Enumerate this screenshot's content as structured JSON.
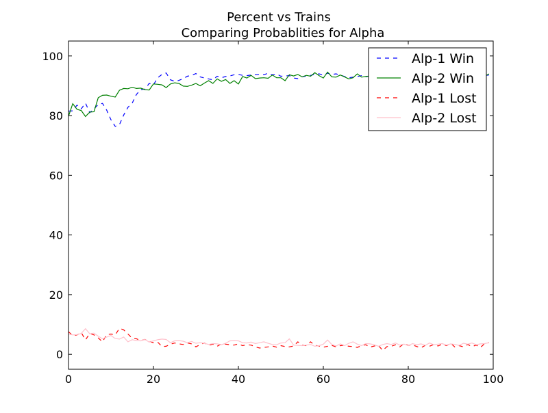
{
  "chart_data": {
    "type": "line",
    "title": "Percent vs Trains",
    "subtitle": "Comparing Probablities for Alpha",
    "xlabel": "",
    "ylabel": "",
    "xlim": [
      0,
      100
    ],
    "ylim": [
      -5,
      105
    ],
    "xticks": [
      0,
      20,
      40,
      60,
      80,
      100
    ],
    "yticks": [
      0,
      20,
      40,
      60,
      80,
      100
    ],
    "grid": false,
    "legend_position": "top-right",
    "x": [
      0,
      1,
      2,
      3,
      4,
      5,
      6,
      7,
      8,
      9,
      10,
      11,
      12,
      13,
      14,
      15,
      16,
      17,
      18,
      19,
      20,
      21,
      22,
      23,
      24,
      25,
      26,
      27,
      28,
      29,
      30,
      31,
      32,
      33,
      34,
      35,
      36,
      37,
      38,
      39,
      40,
      41,
      42,
      43,
      44,
      45,
      46,
      47,
      48,
      49,
      50,
      51,
      52,
      53,
      54,
      55,
      56,
      57,
      58,
      59,
      60,
      61,
      62,
      63,
      64,
      65,
      66,
      67,
      68,
      69,
      70,
      71,
      72,
      73,
      74,
      75,
      76,
      77,
      78,
      79,
      80,
      81,
      82,
      83,
      84,
      85,
      86,
      87,
      88,
      89,
      90,
      91,
      92,
      93,
      94,
      95,
      96,
      97,
      98,
      99
    ],
    "series": [
      {
        "name": "Alp-1 Win",
        "color": "#0000ff",
        "dash": "dashed",
        "values": [
          81.5,
          81.6,
          83.5,
          82.3,
          84.2,
          81.0,
          82.3,
          83.7,
          84.1,
          81.8,
          78.6,
          76.4,
          77.0,
          80.2,
          82.8,
          84.2,
          87.1,
          88.7,
          88.9,
          90.8,
          90.3,
          92.7,
          93.8,
          94.3,
          92.0,
          91.5,
          91.8,
          92.4,
          93.2,
          93.5,
          94.1,
          93.0,
          92.6,
          92.3,
          92.0,
          93.2,
          92.7,
          93.1,
          93.3,
          93.7,
          93.8,
          93.5,
          93.4,
          93.6,
          93.7,
          93.8,
          93.7,
          94.2,
          93.7,
          94.0,
          93.2,
          93.3,
          93.4,
          92.6,
          92.4,
          93.0,
          93.3,
          93.5,
          93.8,
          94.0,
          93.6,
          94.2,
          93.8,
          94.0,
          93.6,
          93.1,
          92.7,
          92.9,
          93.1,
          93.4,
          93.0,
          93.3,
          93.2,
          93.5,
          93.4,
          93.6,
          93.0,
          93.2,
          93.4,
          93.7,
          93.5,
          93.2,
          93.4,
          93.6,
          93.1,
          93.3,
          93.4,
          93.5,
          93.2,
          93.6,
          93.4,
          93.5,
          93.3,
          93.4,
          93.6,
          93.2,
          93.5,
          93.7,
          93.4,
          93.6
        ]
      },
      {
        "name": "Alp-2 Win",
        "color": "#008000",
        "dash": "solid",
        "values": [
          79.8,
          84.0,
          82.1,
          81.7,
          79.7,
          81.2,
          81.3,
          86.0,
          86.8,
          86.9,
          86.5,
          86.2,
          88.5,
          89.1,
          89.0,
          89.5,
          89.1,
          89.2,
          88.7,
          88.6,
          90.6,
          90.5,
          90.3,
          89.4,
          90.6,
          91.0,
          90.8,
          89.9,
          89.8,
          90.2,
          90.8,
          90.0,
          90.9,
          91.7,
          90.8,
          92.3,
          91.5,
          92.1,
          90.8,
          91.7,
          90.6,
          93.1,
          92.6,
          93.5,
          92.4,
          92.6,
          92.7,
          92.5,
          93.6,
          92.7,
          92.7,
          91.7,
          93.7,
          93.3,
          93.8,
          93.0,
          93.5,
          93.2,
          94.4,
          93.4,
          92.6,
          94.6,
          93.0,
          92.9,
          93.6,
          93.0,
          92.3,
          92.7,
          94.0,
          92.9,
          93.1,
          93.3,
          92.6,
          93.2,
          93.5,
          92.9,
          93.4,
          93.2,
          93.0,
          93.6,
          93.2,
          92.8,
          93.5,
          93.3,
          93.1,
          93.6,
          93.0,
          93.4,
          93.3,
          93.5,
          93.1,
          93.4,
          93.2,
          93.5,
          93.3,
          93.0,
          93.4,
          93.6,
          93.2,
          94.0
        ]
      },
      {
        "name": "Alp-1 Lost",
        "color": "#ff0000",
        "dash": "dashed",
        "values": [
          7.6,
          6.2,
          6.5,
          7.3,
          4.8,
          7.0,
          6.5,
          5.5,
          4.2,
          6.6,
          6.8,
          6.5,
          8.7,
          8.2,
          6.8,
          5.4,
          5.2,
          4.6,
          5.0,
          4.4,
          3.9,
          4.1,
          2.6,
          2.7,
          3.4,
          3.8,
          3.5,
          3.3,
          3.8,
          3.5,
          2.5,
          3.3,
          3.8,
          3.0,
          3.4,
          2.7,
          3.5,
          3.4,
          3.2,
          3.1,
          3.5,
          2.9,
          3.2,
          3.1,
          2.5,
          2.1,
          2.3,
          2.5,
          2.8,
          2.4,
          2.9,
          2.6,
          2.5,
          2.8,
          4.2,
          3.1,
          2.9,
          4.2,
          3.0,
          2.8,
          2.4,
          2.7,
          3.0,
          2.5,
          2.9,
          3.1,
          2.7,
          2.6,
          2.3,
          2.9,
          3.2,
          2.4,
          2.8,
          2.9,
          1.3,
          2.6,
          2.7,
          3.2,
          2.5,
          3.6,
          3.0,
          3.2,
          2.6,
          2.2,
          3.0,
          2.7,
          3.3,
          2.8,
          3.4,
          2.9,
          3.7,
          2.4,
          2.9,
          2.5,
          3.3,
          2.6,
          3.1,
          2.3,
          3.6,
          3.9
        ]
      },
      {
        "name": "Alp-2 Lost",
        "color": "#ffc0cb",
        "dash": "solid",
        "values": [
          6.8,
          6.5,
          6.6,
          7.0,
          8.6,
          6.9,
          7.1,
          6.1,
          5.2,
          5.8,
          6.3,
          5.3,
          5.1,
          5.8,
          4.2,
          4.9,
          4.6,
          4.5,
          5.0,
          4.1,
          4.5,
          4.9,
          5.1,
          5.0,
          3.9,
          4.5,
          4.6,
          4.4,
          3.9,
          4.3,
          3.7,
          3.9,
          3.7,
          3.3,
          3.6,
          3.5,
          3.2,
          3.7,
          4.5,
          4.6,
          4.5,
          3.9,
          3.8,
          4.1,
          3.6,
          3.9,
          4.2,
          3.7,
          3.3,
          3.2,
          3.8,
          3.9,
          5.2,
          3.1,
          3.0,
          2.9,
          3.1,
          3.3,
          2.7,
          2.9,
          3.4,
          4.8,
          3.3,
          2.8,
          3.5,
          2.9,
          3.7,
          4.2,
          3.4,
          2.9,
          3.6,
          3.5,
          3.2,
          2.7,
          3.3,
          3.6,
          3.3,
          3.8,
          3.1,
          3.4,
          2.9,
          3.6,
          3.2,
          3.5,
          3.0,
          3.8,
          3.2,
          3.4,
          3.6,
          3.1,
          3.5,
          3.3,
          3.0,
          3.7,
          3.4,
          3.8,
          3.2,
          3.5,
          3.6,
          3.9
        ]
      }
    ]
  }
}
